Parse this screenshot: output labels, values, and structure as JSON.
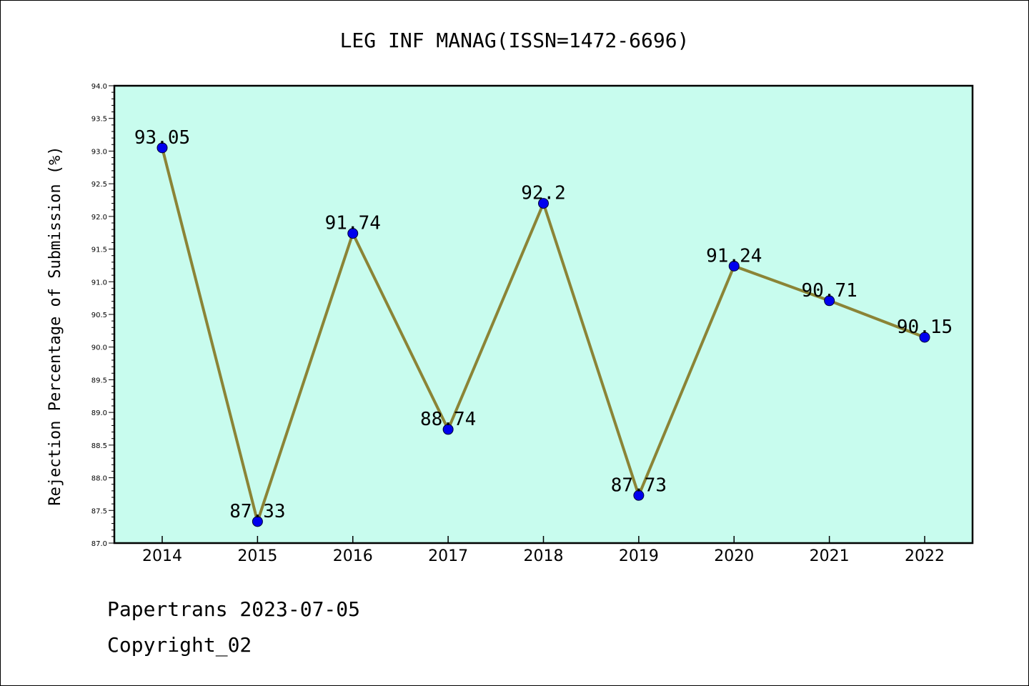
{
  "chart_data": {
    "type": "line",
    "title": "LEG INF MANAG(ISSN=1472-6696)",
    "ylabel": "Rejection Percentage of Submission (%)",
    "xlabel": "",
    "categories": [
      "2014",
      "2015",
      "2016",
      "2017",
      "2018",
      "2019",
      "2020",
      "2021",
      "2022"
    ],
    "values": [
      93.05,
      87.33,
      91.74,
      88.74,
      92.2,
      87.73,
      91.24,
      90.71,
      90.15
    ],
    "data_labels": [
      "93.05",
      "87.33",
      "91.74",
      "88.74",
      "92.2",
      "87.73",
      "91.24",
      "90.71",
      "90.15"
    ],
    "ylim": [
      87.0,
      94.0
    ],
    "yticks": [
      "87.0",
      "87.5",
      "88.0",
      "88.5",
      "89.0",
      "89.5",
      "90.0",
      "90.5",
      "91.0",
      "91.5",
      "92.0",
      "92.5",
      "93.0",
      "93.5",
      "94.0"
    ],
    "grid": false,
    "legend": "none",
    "colors": {
      "plot_background": "#c8fcee",
      "line": "#8b8436",
      "marker": "#0000ee"
    }
  },
  "footer": {
    "line1": "Papertrans 2023-07-05",
    "line2": "Copyright_02"
  }
}
